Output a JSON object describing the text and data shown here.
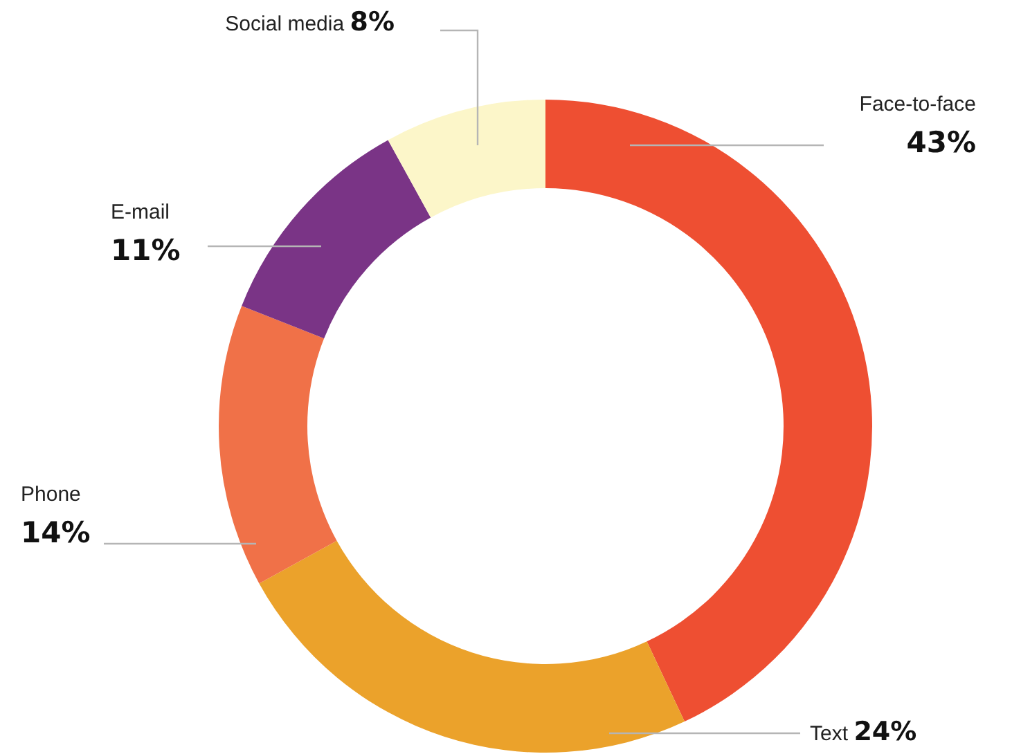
{
  "chart_data": {
    "type": "donut",
    "categories": [
      "Face-to-face",
      "Text",
      "Phone",
      "E-mail",
      "Social media"
    ],
    "values": [
      43,
      24,
      14,
      11,
      8
    ],
    "value_labels": [
      "43%",
      "24%",
      "14%",
      "11%",
      "8%"
    ],
    "colors": [
      "#ee4f32",
      "#eba22b",
      "#f07148",
      "#7a3486",
      "#fcf6c9"
    ]
  }
}
